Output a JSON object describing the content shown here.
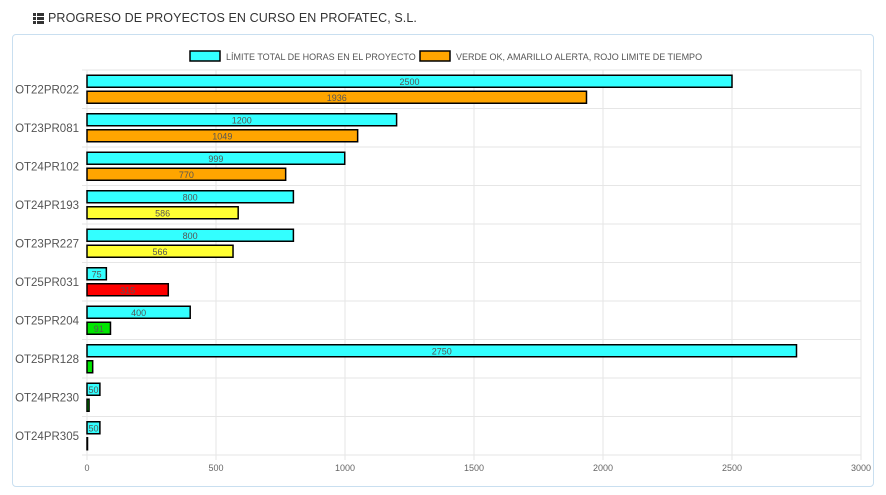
{
  "header": {
    "title": "PROGRESO DE PROYECTOS EN CURSO EN PROFATEC, S.L.",
    "icon": "list-icon"
  },
  "colors": {
    "limit": "#33ffff",
    "ok": "#00e600",
    "warning": "#ffff33",
    "over_limit": "#ff0000",
    "legend_progress": "#ffa500",
    "bar_border": "#000000",
    "grid": "#e6e6e6"
  },
  "chart_data": {
    "type": "bar",
    "orientation": "horizontal",
    "title": "",
    "xlabel": "",
    "ylabel": "",
    "xlim": [
      0,
      3000
    ],
    "xticks": [
      0,
      500,
      1000,
      1500,
      2000,
      2500,
      3000
    ],
    "grid": true,
    "legend_position": "top",
    "categories": [
      "OT22PR022",
      "OT23PR081",
      "OT24PR102",
      "OT24PR193",
      "OT23PR227",
      "OT25PR031",
      "OT25PR204",
      "OT25PR128",
      "OT24PR230",
      "OT24PR305"
    ],
    "series": [
      {
        "name": "LÍMITE TOTAL DE HORAS EN EL PROYECTO",
        "values": [
          2500,
          1200,
          999,
          800,
          800,
          75,
          400,
          2750,
          50,
          50
        ],
        "labels": [
          "2500",
          "1200",
          "999",
          "800",
          "800",
          "75",
          "400",
          "2750",
          "50",
          "50"
        ],
        "colors": [
          "#33ffff",
          "#33ffff",
          "#33ffff",
          "#33ffff",
          "#33ffff",
          "#33ffff",
          "#33ffff",
          "#33ffff",
          "#33ffff",
          "#33ffff"
        ],
        "legend_color": "#33ffff"
      },
      {
        "name": "VERDE OK, AMARILLO ALERTA, ROJO LIMITE DE TIEMPO",
        "values": [
          1936,
          1049,
          770,
          586,
          566,
          315,
          91,
          22,
          8,
          2
        ],
        "labels": [
          "1936",
          "1049",
          "770",
          "586",
          "566",
          "315",
          "91",
          "",
          "",
          ""
        ],
        "colors": [
          "#ffa500",
          "#ffa500",
          "#ffa500",
          "#ffff33",
          "#ffff33",
          "#ff0000",
          "#00e600",
          "#00e600",
          "#00e600",
          "#00e600"
        ],
        "legend_color": "#ffa500"
      }
    ]
  }
}
